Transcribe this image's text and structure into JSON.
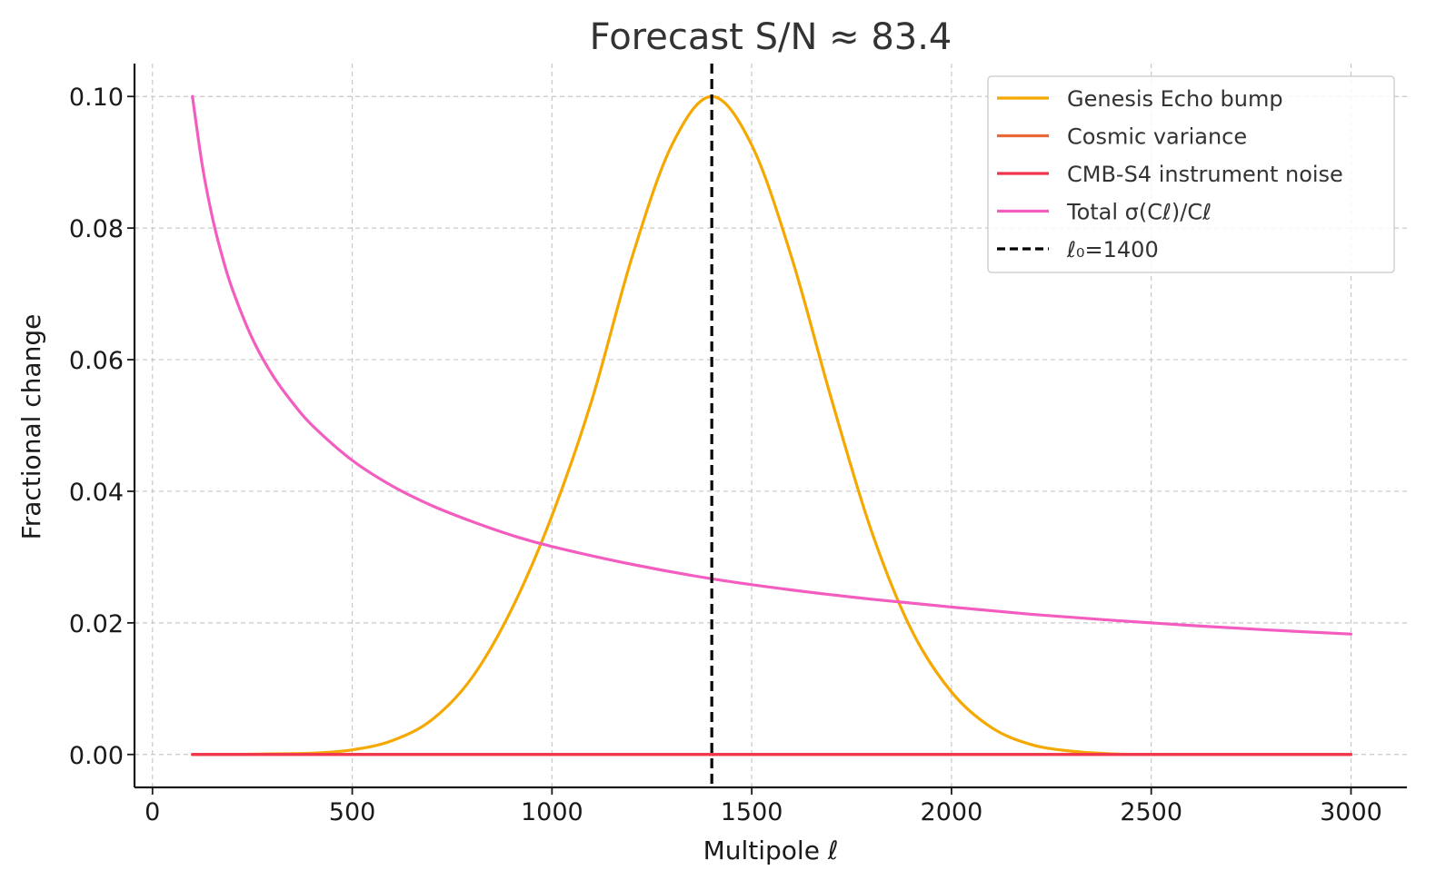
{
  "chart_data": {
    "type": "line",
    "title": "Forecast S/N ≈ 83.4",
    "xlabel": "Multipole ℓ",
    "ylabel": "Fractional change",
    "xlim": [
      -45,
      3140
    ],
    "ylim": [
      -0.005,
      0.105
    ],
    "xticks": [
      0,
      500,
      1000,
      1500,
      2000,
      2500,
      3000
    ],
    "xtick_labels": [
      "0",
      "500",
      "1000",
      "1500",
      "2000",
      "2500",
      "3000"
    ],
    "yticks": [
      0.0,
      0.02,
      0.04,
      0.06,
      0.08,
      0.1
    ],
    "ytick_labels": [
      "0.00",
      "0.02",
      "0.04",
      "0.06",
      "0.08",
      "0.10"
    ],
    "grid": true,
    "legend_position": "top-right",
    "series": [
      {
        "name": "Genesis Echo bump",
        "color": "#f5a800",
        "x": [
          100,
          200,
          300,
          400,
          500,
          600,
          700,
          800,
          900,
          1000,
          1100,
          1200,
          1300,
          1400,
          1500,
          1600,
          1700,
          1800,
          1900,
          2000,
          2100,
          2200,
          2300,
          2400,
          2500,
          2600,
          2700,
          2800,
          2900,
          3000
        ],
        "y": [
          0.0,
          0.0,
          0.0001,
          0.0002,
          0.0007,
          0.0021,
          0.0053,
          0.0117,
          0.0222,
          0.0363,
          0.0539,
          0.0755,
          0.0926,
          0.1,
          0.0926,
          0.0755,
          0.0539,
          0.0339,
          0.0189,
          0.0095,
          0.0041,
          0.0015,
          0.0005,
          0.0001,
          0.0,
          0.0,
          0.0,
          0.0,
          0.0,
          0.0
        ]
      },
      {
        "name": "Cosmic variance",
        "color": "#e8683a",
        "x": [
          100,
          3000
        ],
        "y": [
          0.0,
          0.0
        ]
      },
      {
        "name": "CMB-S4 instrument noise",
        "color": "#f0364f",
        "x": [
          100,
          3000
        ],
        "y": [
          0.0,
          0.0
        ]
      },
      {
        "name": "Total σ(Cℓ)/Cℓ",
        "color": "#f35dbf",
        "x": [
          100,
          125,
          150,
          175,
          200,
          250,
          300,
          350,
          400,
          500,
          600,
          700,
          800,
          900,
          1000,
          1200,
          1400,
          1600,
          1800,
          2000,
          2200,
          2400,
          2600,
          2800,
          3000
        ],
        "y": [
          0.1,
          0.0894,
          0.0816,
          0.0756,
          0.0707,
          0.0632,
          0.0577,
          0.0535,
          0.05,
          0.0447,
          0.0408,
          0.0378,
          0.0354,
          0.0333,
          0.0316,
          0.0289,
          0.0267,
          0.025,
          0.0236,
          0.0224,
          0.0213,
          0.0204,
          0.0196,
          0.0189,
          0.0183
        ]
      }
    ],
    "vline": {
      "name": "ℓ₀=1400",
      "x": 1400,
      "color": "#000000"
    }
  }
}
